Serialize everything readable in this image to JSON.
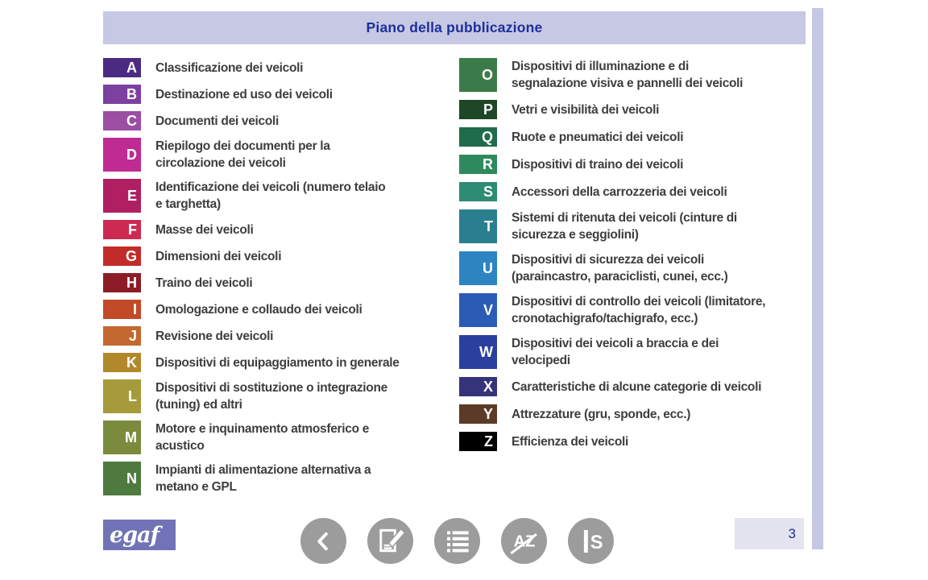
{
  "header": {
    "title": "Piano della pubblicazione"
  },
  "categories": {
    "left": [
      {
        "letter": "A",
        "color": "#4b2b81",
        "label": "Classificazione dei veicoli"
      },
      {
        "letter": "B",
        "color": "#7b40a0",
        "label": "Destinazione ed uso dei veicoli"
      },
      {
        "letter": "C",
        "color": "#9c4ea4",
        "label": "Documenti dei veicoli"
      },
      {
        "letter": "D",
        "color": "#bf2b92",
        "label": "Riepilogo dei documenti per la\ncircolazione dei veicoli"
      },
      {
        "letter": "E",
        "color": "#b01f62",
        "label": "Identificazione dei veicoli (numero telaio\ne targhetta)"
      },
      {
        "letter": "F",
        "color": "#cd2a52",
        "label": "Masse dei veicoli"
      },
      {
        "letter": "G",
        "color": "#c32b2b",
        "label": "Dimensioni dei veicoli"
      },
      {
        "letter": "H",
        "color": "#8c1d26",
        "label": "Traino dei veicoli"
      },
      {
        "letter": "I",
        "color": "#c24a26",
        "label": "Omologazione e collaudo dei veicoli"
      },
      {
        "letter": "J",
        "color": "#c3682e",
        "label": "Revisione dei veicoli"
      },
      {
        "letter": "K",
        "color": "#b2892a",
        "label": "Dispositivi di equipaggiamento in generale"
      },
      {
        "letter": "L",
        "color": "#a59b3a",
        "label": "Dispositivi di sostituzione o integrazione\n(tuning) ed altri"
      },
      {
        "letter": "M",
        "color": "#7b8b3d",
        "label": "Motore e inquinamento atmosferico e\nacustico"
      },
      {
        "letter": "N",
        "color": "#4e7a40",
        "label": "Impianti di alimentazione alternativa a\nmetano e GPL"
      }
    ],
    "right": [
      {
        "letter": "O",
        "color": "#3b7b49",
        "label": "Dispositivi di illuminazione e di\nsegnalazione visiva e pannelli dei veicoli"
      },
      {
        "letter": "P",
        "color": "#1d4727",
        "label": "Vetri e visibilità dei veicoli"
      },
      {
        "letter": "Q",
        "color": "#1e6c4b",
        "label": "Ruote e pneumatici dei veicoli"
      },
      {
        "letter": "R",
        "color": "#2e8a5e",
        "label": "Dispositivi di traino dei veicoli"
      },
      {
        "letter": "S",
        "color": "#2e8b74",
        "label": "Accessori della carrozzeria dei veicoli"
      },
      {
        "letter": "T",
        "color": "#2a7f8e",
        "label": "Sistemi di ritenuta dei veicoli (cinture di\nsicurezza e seggiolini)"
      },
      {
        "letter": "U",
        "color": "#2d84c0",
        "label": "Dispositivi di sicurezza dei veicoli\n(paraincastro, paraciclisti, cunei, ecc.)"
      },
      {
        "letter": "V",
        "color": "#2b5cb5",
        "label": "Dispositivi di controllo dei veicoli (limitatore,\ncronotachigrafo/tachigrafo, ecc.)"
      },
      {
        "letter": "W",
        "color": "#2b3f9f",
        "label": "Dispositivi dei veicoli a braccia e dei\nvelocipedi"
      },
      {
        "letter": "X",
        "color": "#35337a",
        "label": "Caratteristiche di alcune categorie di veicoli"
      },
      {
        "letter": "Y",
        "color": "#5c3a28",
        "label": "Attrezzature (gru, sponde, ecc.)"
      },
      {
        "letter": "Z",
        "color": "#000000",
        "label": "Efficienza dei veicoli"
      }
    ]
  },
  "footer": {
    "logo_text": "egaf",
    "page_number": "3",
    "az_label": "AZ",
    "is_label": "S",
    "icons": [
      "back-icon",
      "edit-page-icon",
      "list-icon",
      "az-index-icon",
      "is-index-icon"
    ]
  },
  "colors": {
    "header_bg": "#c7c8e3",
    "accent_bar": "#c6c7e2",
    "pagenum_bg": "#e4e4f1",
    "title": "#1c2f9b",
    "pagenum": "#232a8e",
    "label": "#3e3e3e",
    "icon_bg": "#9c9c9c",
    "logo_bg": "#7173b6",
    "letter": "#ffffff"
  }
}
